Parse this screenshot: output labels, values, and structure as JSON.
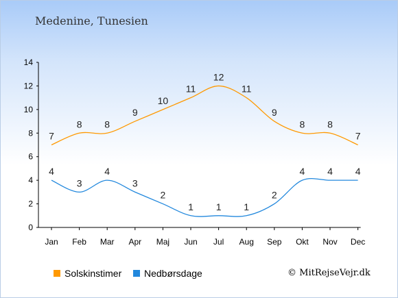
{
  "title": "Medenine, Tunesien",
  "copyright": "© MitRejseVejr.dk",
  "colors": {
    "sun": "#ff9900",
    "rain": "#2288dd",
    "axis": "#000000",
    "label": "#222222"
  },
  "chart_data": {
    "type": "line",
    "categories": [
      "Jan",
      "Feb",
      "Mar",
      "Apr",
      "Maj",
      "Jun",
      "Jul",
      "Aug",
      "Sep",
      "Okt",
      "Nov",
      "Dec"
    ],
    "series": [
      {
        "name": "Solskinstimer",
        "values": [
          7,
          8,
          8,
          9,
          10,
          11,
          12,
          11,
          9,
          8,
          8,
          7
        ]
      },
      {
        "name": "Nedbørsdage",
        "values": [
          4,
          3,
          4,
          3,
          2,
          1,
          1,
          1,
          2,
          4,
          4,
          4
        ]
      }
    ],
    "yticks": [
      0,
      2,
      4,
      6,
      8,
      10,
      12,
      14
    ],
    "ylim": [
      0,
      14
    ],
    "grid": false,
    "legend_position": "bottom-left"
  }
}
